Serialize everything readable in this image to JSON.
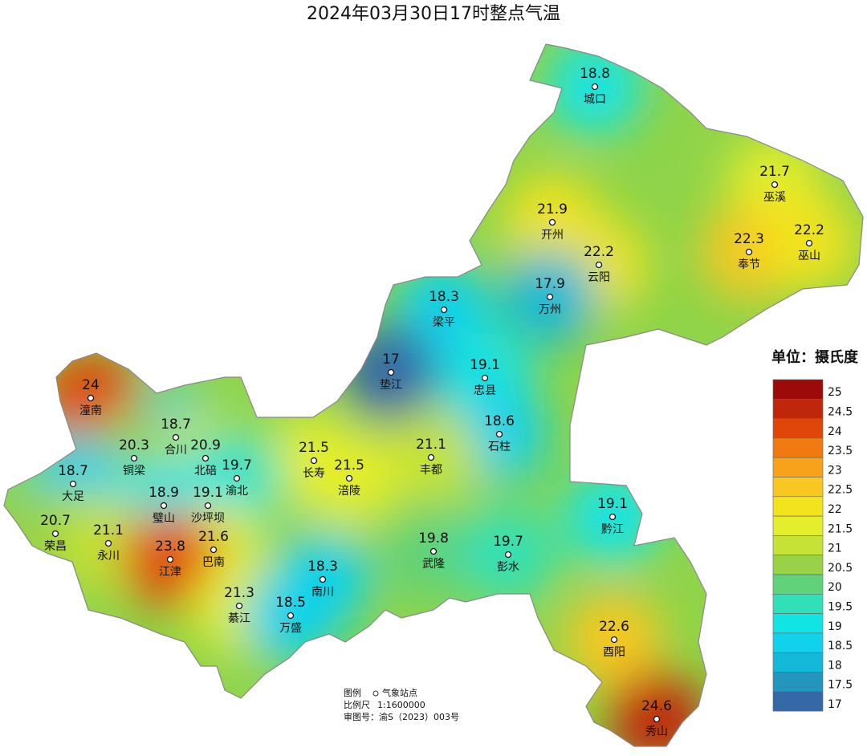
{
  "title": "2024年03月30日17时整点气温",
  "unit_label": "单位：摄氏度",
  "stations": [
    {
      "name": "城口",
      "value": 18.8
    },
    {
      "name": "巫溪",
      "value": 21.7
    },
    {
      "name": "开州",
      "value": 21.9
    },
    {
      "name": "云阳",
      "value": 22.2
    },
    {
      "name": "奉节",
      "value": 22.3
    },
    {
      "name": "巫山",
      "value": 22.2
    },
    {
      "name": "梁平",
      "value": 18.3
    },
    {
      "name": "万州",
      "value": 17.9
    },
    {
      "name": "垫江",
      "value": 17
    },
    {
      "name": "忠县",
      "value": 19.1
    },
    {
      "name": "潼南",
      "value": 24
    },
    {
      "name": "合川",
      "value": 18.7
    },
    {
      "name": "石柱",
      "value": 18.6
    },
    {
      "name": "铜梁",
      "value": 20.3
    },
    {
      "name": "北碚",
      "value": 20.9
    },
    {
      "name": "长寿",
      "value": 21.5
    },
    {
      "name": "丰都",
      "value": 21.1
    },
    {
      "name": "渝北",
      "value": 19.7
    },
    {
      "name": "涪陵",
      "value": 21.5
    },
    {
      "name": "大足",
      "value": 18.7
    },
    {
      "name": "璧山",
      "value": 18.9
    },
    {
      "name": "沙坪坝",
      "value": 19.1
    },
    {
      "name": "黔江",
      "value": 19.1
    },
    {
      "name": "荣昌",
      "value": 20.7
    },
    {
      "name": "永川",
      "value": 21.1
    },
    {
      "name": "巴南",
      "value": 21.6
    },
    {
      "name": "江津",
      "value": 23.8
    },
    {
      "name": "武隆",
      "value": 19.8
    },
    {
      "name": "彭水",
      "value": 19.7
    },
    {
      "name": "南川",
      "value": 18.3
    },
    {
      "name": "綦江",
      "value": 21.3
    },
    {
      "name": "万盛",
      "value": 18.5
    },
    {
      "name": "酉阳",
      "value": 22.6
    },
    {
      "name": "秀山",
      "value": 24.6
    }
  ],
  "legend": {
    "labels": [
      25,
      24.5,
      24,
      23.5,
      23,
      22.5,
      22,
      21.5,
      21,
      20.5,
      20,
      19.5,
      19,
      18.5,
      18,
      17.5,
      17
    ],
    "colors": [
      "#9c0a0a",
      "#c0260a",
      "#e0460a",
      "#f07a10",
      "#f7a21a",
      "#f8c820",
      "#f2e31e",
      "#e5ee2a",
      "#c6e236",
      "#99d246",
      "#5fd27a",
      "#32e0b8",
      "#12e4e4",
      "#10d2ec",
      "#14b8d8",
      "#2496be",
      "#3468a6"
    ]
  },
  "notes": {
    "legend_label": "图例",
    "station_label": "气象站点",
    "scale_label": "比例尺",
    "scale": "1:1600000",
    "review": "审图号：渝S（2023）003号"
  }
}
